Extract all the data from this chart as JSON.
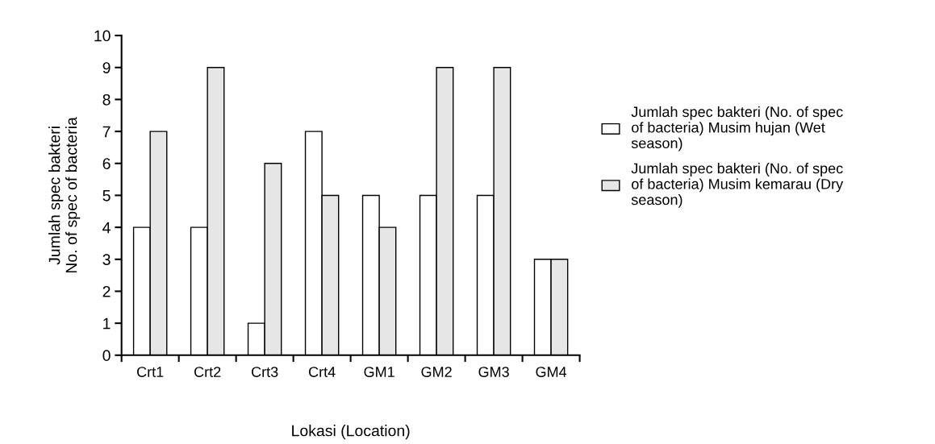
{
  "chart_data": {
    "type": "bar",
    "categories": [
      "Crt1",
      "Crt2",
      "Crt3",
      "Crt4",
      "GM1",
      "GM2",
      "GM3",
      "GM4"
    ],
    "series": [
      {
        "name": "Jumlah spec bakteri (No. of spec of bacteria) Musim hujan (Wet season)",
        "color": "#ffffff",
        "values": [
          4,
          4,
          1,
          7,
          5,
          5,
          5,
          3
        ]
      },
      {
        "name": "Jumlah spec bakteri (No. of spec of bacteria) Musim kemarau (Dry season)",
        "color": "#e6e6e6",
        "values": [
          7,
          9,
          6,
          5,
          4,
          9,
          9,
          3
        ]
      }
    ],
    "ylabel": "Jumlah spec bakteri\nNo. of spec of bacteria",
    "xlabel": "Lokasi (Location)",
    "ylim": [
      0,
      10
    ],
    "yticks": [
      0,
      1,
      2,
      3,
      4,
      5,
      6,
      7,
      8,
      9,
      10
    ],
    "grid": false,
    "legend": "right"
  }
}
